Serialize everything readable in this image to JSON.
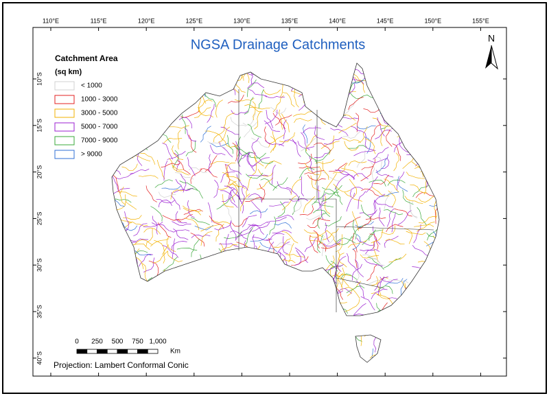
{
  "title": "NGSA Drainage Catchments",
  "legend": {
    "title": "Catchment Area",
    "subtitle": "(sq km)",
    "items": [
      {
        "label": "< 1000",
        "color": "#d0d0d0"
      },
      {
        "label": "1000 - 3000",
        "color": "#e32020"
      },
      {
        "label": "3000 - 5000",
        "color": "#f2b100"
      },
      {
        "label": "5000 - 7000",
        "color": "#9b1fd1"
      },
      {
        "label": "7000 - 9000",
        "color": "#3aa83a"
      },
      {
        "label": "> 9000",
        "color": "#2f6fd6"
      }
    ]
  },
  "graticule": {
    "longitudes": [
      "110°E",
      "115°E",
      "120°E",
      "125°E",
      "130°E",
      "135°E",
      "140°E",
      "145°E",
      "150°E",
      "155°E"
    ],
    "latitudes": [
      "10°S",
      "15°S",
      "20°S",
      "25°S",
      "30°S",
      "35°S",
      "40°S"
    ]
  },
  "north_arrow": "N",
  "scale_bar": {
    "labels": [
      "0",
      "250",
      "500",
      "750",
      "1,000"
    ],
    "unit": "Km"
  },
  "projection": "Projection: Lambert Conformal Conic"
}
